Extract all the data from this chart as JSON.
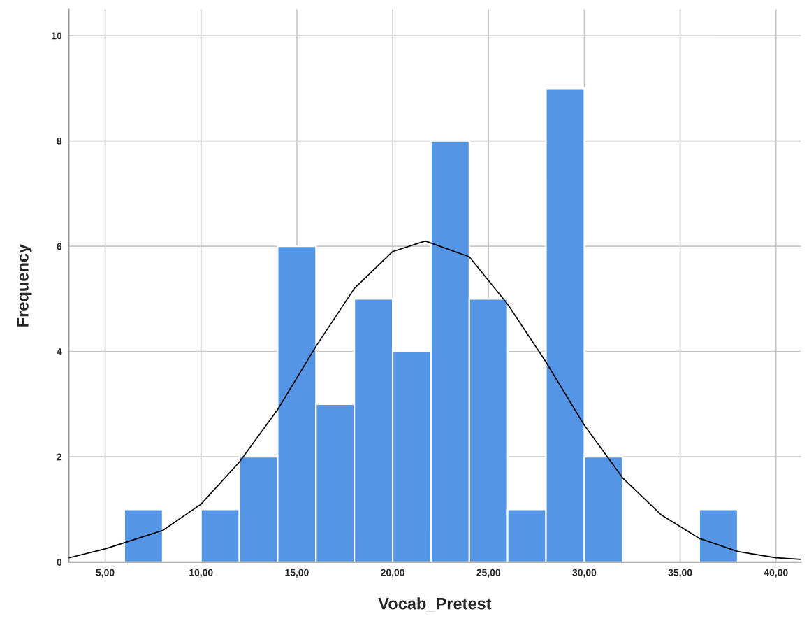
{
  "chart_data": {
    "type": "histogram",
    "xlabel": "Vocab_Pretest",
    "ylabel": "Frequency",
    "bins": [
      6,
      8,
      10,
      12,
      14,
      16,
      18,
      20,
      22,
      24,
      26,
      28,
      30,
      32,
      34,
      36,
      38
    ],
    "values": [
      1,
      0,
      1,
      2,
      6,
      3,
      5,
      4,
      8,
      5,
      1,
      9,
      2,
      0,
      0,
      1
    ],
    "color": "#5595e5",
    "series": [
      {
        "type": "line",
        "color": "#000000",
        "x": [
          3.1,
          5,
          8,
          10,
          12,
          14,
          16,
          18,
          20,
          21.7,
          24,
          26,
          28,
          30,
          32,
          34,
          36,
          38,
          40,
          41.3
        ],
        "values": [
          0.08,
          0.25,
          0.6,
          1.1,
          1.9,
          2.9,
          4.1,
          5.2,
          5.9,
          6.1,
          5.8,
          4.9,
          3.8,
          2.6,
          1.6,
          0.9,
          0.45,
          0.2,
          0.08,
          0.05
        ]
      }
    ],
    "xlim": [
      3.1,
      41.3
    ],
    "ylim": [
      0,
      10.5
    ],
    "xticks": [
      {
        "value": 5,
        "label": "5,00"
      },
      {
        "value": 10,
        "label": "10,00"
      },
      {
        "value": 15,
        "label": "15,00"
      },
      {
        "value": 20,
        "label": "20,00"
      },
      {
        "value": 25,
        "label": "25,00"
      },
      {
        "value": 30,
        "label": "30,00"
      },
      {
        "value": 35,
        "label": "35,00"
      },
      {
        "value": 40,
        "label": "40,00"
      }
    ],
    "yticks": [
      0,
      2,
      4,
      6,
      8,
      10
    ],
    "grid": true
  }
}
